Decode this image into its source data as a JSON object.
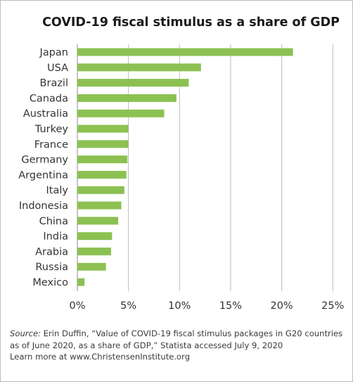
{
  "chart_data": {
    "type": "bar",
    "orientation": "horizontal",
    "title": "COVID-19 fiscal stimulus as a share of GDP",
    "categories": [
      "Japan",
      "USA",
      "Brazil",
      "Canada",
      "Australia",
      "Turkey",
      "France",
      "Germany",
      "Argentina",
      "Italy",
      "Indonesia",
      "China",
      "India",
      "Arabia",
      "Russia",
      "Mexico"
    ],
    "values": [
      21.1,
      12.1,
      10.9,
      9.7,
      8.5,
      5.0,
      5.0,
      4.9,
      4.8,
      4.6,
      4.3,
      4.0,
      3.4,
      3.3,
      2.8,
      0.7
    ],
    "x_ticks": [
      "0%",
      "5%",
      "10%",
      "15%",
      "20%",
      "25%"
    ],
    "xlim": [
      0,
      25
    ],
    "grid": "vertical",
    "bar_color": "#8cc152"
  },
  "source": {
    "lead": "Source:",
    "text": " Erin Duffin, “Value of COVID-19 fiscal stimulus packages in G20 countries as of June 2020, as a share of GDP,” Statista accessed July 9, 2020",
    "learn_more": "Learn more at www.ChristensenInstitute.org"
  }
}
